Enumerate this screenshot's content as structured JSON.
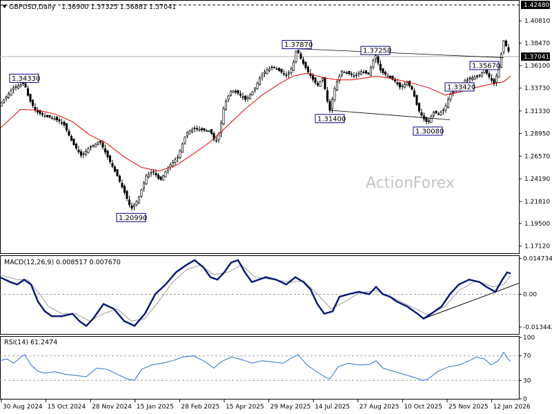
{
  "chart_data": {
    "type": "candlestick",
    "symbol": "GBPUSD,Daily",
    "ohlc_text": "1.36900 1.37325 1.36881 1.37041",
    "last_price": "1.37041",
    "watermark": "ActionForex",
    "price_axis": {
      "range": [
        1.1637,
        1.4292
      ],
      "ticks": [
        "1.40810",
        "1.38470",
        "1.36100",
        "1.33730",
        "1.31330",
        "1.28950",
        "1.26570",
        "1.24190",
        "1.21810",
        "1.19500",
        "1.17120"
      ],
      "top_label": "1.42480"
    },
    "x_axis": {
      "ticks": [
        "30 Aug 2024",
        "15 Oct 2024",
        "28 Nov 2024",
        "15 Jan 2025",
        "28 Feb 2025",
        "15 Apr 2025",
        "29 May 2025",
        "14 Jul 2025",
        "27 Aug 2025",
        "10 Oct 2025",
        "25 Nov 2025",
        "12 Jan 2026"
      ]
    },
    "price_path": [
      [
        0,
        1.32
      ],
      [
        20,
        1.338
      ],
      [
        28,
        1.34
      ],
      [
        35,
        1.3433
      ],
      [
        42,
        1.326
      ],
      [
        52,
        1.313
      ],
      [
        65,
        1.308
      ],
      [
        80,
        1.305
      ],
      [
        92,
        1.3
      ],
      [
        105,
        1.28
      ],
      [
        118,
        1.266
      ],
      [
        130,
        1.275
      ],
      [
        145,
        1.281
      ],
      [
        158,
        1.262
      ],
      [
        170,
        1.245
      ],
      [
        182,
        1.225
      ],
      [
        190,
        1.2099
      ],
      [
        200,
        1.22
      ],
      [
        212,
        1.245
      ],
      [
        222,
        1.25
      ],
      [
        232,
        1.24
      ],
      [
        245,
        1.255
      ],
      [
        258,
        1.265
      ],
      [
        270,
        1.29
      ],
      [
        282,
        1.295
      ],
      [
        295,
        1.293
      ],
      [
        305,
        1.292
      ],
      [
        312,
        1.28
      ],
      [
        318,
        1.29
      ],
      [
        325,
        1.32
      ],
      [
        335,
        1.335
      ],
      [
        345,
        1.332
      ],
      [
        356,
        1.325
      ],
      [
        368,
        1.335
      ],
      [
        378,
        1.35
      ],
      [
        386,
        1.356
      ],
      [
        396,
        1.36
      ],
      [
        406,
        1.355
      ],
      [
        416,
        1.35
      ],
      [
        424,
        1.36
      ],
      [
        430,
        1.3787
      ],
      [
        438,
        1.365
      ],
      [
        446,
        1.355
      ],
      [
        452,
        1.348
      ],
      [
        460,
        1.34
      ],
      [
        468,
        1.348
      ],
      [
        474,
        1.325
      ],
      [
        478,
        1.314
      ],
      [
        486,
        1.34
      ],
      [
        495,
        1.355
      ],
      [
        504,
        1.353
      ],
      [
        514,
        1.35
      ],
      [
        524,
        1.355
      ],
      [
        534,
        1.352
      ],
      [
        544,
        1.3725
      ],
      [
        552,
        1.355
      ],
      [
        562,
        1.35
      ],
      [
        572,
        1.345
      ],
      [
        580,
        1.338
      ],
      [
        590,
        1.343
      ],
      [
        598,
        1.335
      ],
      [
        606,
        1.315
      ],
      [
        614,
        1.305
      ],
      [
        620,
        1.3008
      ],
      [
        628,
        1.312
      ],
      [
        636,
        1.31
      ],
      [
        644,
        1.315
      ],
      [
        652,
        1.33
      ],
      [
        660,
        1.336
      ],
      [
        666,
        1.3342
      ],
      [
        674,
        1.345
      ],
      [
        684,
        1.348
      ],
      [
        694,
        1.35
      ],
      [
        702,
        1.3567
      ],
      [
        710,
        1.348
      ],
      [
        716,
        1.342
      ],
      [
        722,
        1.356
      ],
      [
        730,
        1.387
      ],
      [
        736,
        1.378
      ],
      [
        740,
        1.3704
      ]
    ],
    "moving_average_path": [
      [
        0,
        1.295
      ],
      [
        30,
        1.315
      ],
      [
        55,
        1.314
      ],
      [
        80,
        1.31
      ],
      [
        105,
        1.302
      ],
      [
        130,
        1.288
      ],
      [
        155,
        1.279
      ],
      [
        180,
        1.265
      ],
      [
        205,
        1.254
      ],
      [
        230,
        1.25
      ],
      [
        255,
        1.256
      ],
      [
        280,
        1.268
      ],
      [
        305,
        1.281
      ],
      [
        330,
        1.298
      ],
      [
        355,
        1.315
      ],
      [
        380,
        1.33
      ],
      [
        405,
        1.342
      ],
      [
        425,
        1.35
      ],
      [
        445,
        1.353
      ],
      [
        470,
        1.348
      ],
      [
        490,
        1.346
      ],
      [
        510,
        1.346
      ],
      [
        530,
        1.348
      ],
      [
        545,
        1.35
      ],
      [
        570,
        1.347
      ],
      [
        595,
        1.343
      ],
      [
        620,
        1.338
      ],
      [
        645,
        1.33
      ],
      [
        665,
        1.333
      ],
      [
        690,
        1.338
      ],
      [
        715,
        1.342
      ],
      [
        730,
        1.344
      ],
      [
        740,
        1.35
      ]
    ],
    "annotations": [
      {
        "text": "1.34330",
        "x": 35,
        "price": 1.3433
      },
      {
        "text": "1.20990",
        "x": 190,
        "price": 1.2099
      },
      {
        "text": "1.37870",
        "x": 430,
        "price": 1.3787
      },
      {
        "text": "1.37250",
        "x": 544,
        "price": 1.3725
      },
      {
        "text": "1.31400",
        "x": 478,
        "price": 1.314
      },
      {
        "text": "1.30080",
        "x": 620,
        "price": 1.3008
      },
      {
        "text": "1.35670",
        "x": 702,
        "price": 1.3567
      },
      {
        "text": "1.33420",
        "x": 666,
        "price": 1.3342
      }
    ],
    "trendlines": [
      {
        "from": [
          430,
          1.3787
        ],
        "to": [
          730,
          1.3693
        ]
      },
      {
        "from": [
          478,
          1.314
        ],
        "to": [
          652,
          1.304
        ]
      }
    ],
    "macd": {
      "label": "MACD(12,26,9) 0.008517 0.007670",
      "range": [
        -0.0163,
        0.0157
      ],
      "ticks": [
        "0.014734",
        "0.00",
        "-0.013442"
      ],
      "main_path": [
        [
          0,
          0.007
        ],
        [
          15,
          0.005
        ],
        [
          25,
          0.004
        ],
        [
          35,
          0.006
        ],
        [
          45,
          0.004
        ],
        [
          55,
          -0.003
        ],
        [
          65,
          -0.007
        ],
        [
          75,
          -0.009
        ],
        [
          90,
          -0.009
        ],
        [
          105,
          -0.008
        ],
        [
          115,
          -0.011
        ],
        [
          125,
          -0.013
        ],
        [
          135,
          -0.01
        ],
        [
          150,
          -0.004
        ],
        [
          165,
          -0.006
        ],
        [
          180,
          -0.011
        ],
        [
          195,
          -0.013
        ],
        [
          210,
          -0.008
        ],
        [
          225,
          0.0
        ],
        [
          240,
          0.004
        ],
        [
          255,
          0.009
        ],
        [
          270,
          0.012
        ],
        [
          282,
          0.014
        ],
        [
          295,
          0.011
        ],
        [
          305,
          0.007
        ],
        [
          315,
          0.006
        ],
        [
          325,
          0.009
        ],
        [
          335,
          0.013
        ],
        [
          345,
          0.014
        ],
        [
          355,
          0.009
        ],
        [
          365,
          0.005
        ],
        [
          375,
          0.006
        ],
        [
          385,
          0.007
        ],
        [
          400,
          0.006
        ],
        [
          415,
          0.004
        ],
        [
          428,
          0.007
        ],
        [
          440,
          0.005
        ],
        [
          450,
          0.002
        ],
        [
          460,
          -0.004
        ],
        [
          470,
          -0.008
        ],
        [
          482,
          -0.007
        ],
        [
          492,
          -0.001
        ],
        [
          505,
          0.0
        ],
        [
          520,
          0.001
        ],
        [
          535,
          0.0
        ],
        [
          545,
          0.003
        ],
        [
          555,
          0.0
        ],
        [
          565,
          -0.001
        ],
        [
          575,
          -0.003
        ],
        [
          590,
          -0.005
        ],
        [
          605,
          -0.008
        ],
        [
          614,
          -0.01
        ],
        [
          625,
          -0.008
        ],
        [
          640,
          -0.005
        ],
        [
          652,
          0.0
        ],
        [
          665,
          0.004
        ],
        [
          680,
          0.006
        ],
        [
          695,
          0.005
        ],
        [
          705,
          0.003
        ],
        [
          718,
          0.001
        ],
        [
          728,
          0.006
        ],
        [
          735,
          0.009
        ],
        [
          740,
          0.0085
        ]
      ],
      "signal_path": [
        [
          0,
          0.008
        ],
        [
          25,
          0.006
        ],
        [
          40,
          0.006
        ],
        [
          55,
          0.001
        ],
        [
          70,
          -0.005
        ],
        [
          90,
          -0.008
        ],
        [
          110,
          -0.008
        ],
        [
          130,
          -0.011
        ],
        [
          150,
          -0.008
        ],
        [
          170,
          -0.006
        ],
        [
          190,
          -0.011
        ],
        [
          210,
          -0.01
        ],
        [
          230,
          -0.003
        ],
        [
          250,
          0.005
        ],
        [
          270,
          0.01
        ],
        [
          290,
          0.012
        ],
        [
          310,
          0.008
        ],
        [
          330,
          0.009
        ],
        [
          350,
          0.012
        ],
        [
          370,
          0.007
        ],
        [
          395,
          0.006
        ],
        [
          420,
          0.005
        ],
        [
          440,
          0.0055
        ],
        [
          460,
          0.0
        ],
        [
          480,
          -0.006
        ],
        [
          500,
          -0.003
        ],
        [
          520,
          0.0005
        ],
        [
          545,
          0.0015
        ],
        [
          570,
          -0.0015
        ],
        [
          595,
          -0.005
        ],
        [
          620,
          -0.0085
        ],
        [
          645,
          -0.005
        ],
        [
          665,
          0.0015
        ],
        [
          690,
          0.0055
        ],
        [
          715,
          0.003
        ],
        [
          730,
          0.004
        ],
        [
          740,
          0.0077
        ]
      ],
      "trendline": {
        "from": [
          614,
          -0.01
        ],
        "to": [
          752,
          0.0045
        ]
      }
    },
    "rsi": {
      "label": "RSI(14) 61.2474",
      "range": [
        0,
        100
      ],
      "ticks": [
        "100",
        "70",
        "30",
        "0"
      ],
      "path": [
        [
          0,
          62
        ],
        [
          10,
          65
        ],
        [
          20,
          58
        ],
        [
          30,
          68
        ],
        [
          36,
          72
        ],
        [
          45,
          55
        ],
        [
          55,
          45
        ],
        [
          65,
          42
        ],
        [
          80,
          44
        ],
        [
          95,
          40
        ],
        [
          110,
          38
        ],
        [
          125,
          36
        ],
        [
          140,
          50
        ],
        [
          155,
          48
        ],
        [
          170,
          40
        ],
        [
          185,
          32
        ],
        [
          195,
          30
        ],
        [
          205,
          48
        ],
        [
          220,
          55
        ],
        [
          235,
          58
        ],
        [
          250,
          62
        ],
        [
          265,
          68
        ],
        [
          280,
          70
        ],
        [
          295,
          62
        ],
        [
          310,
          50
        ],
        [
          320,
          60
        ],
        [
          335,
          68
        ],
        [
          350,
          64
        ],
        [
          365,
          58
        ],
        [
          380,
          62
        ],
        [
          395,
          60
        ],
        [
          410,
          58
        ],
        [
          425,
          68
        ],
        [
          432,
          72
        ],
        [
          445,
          55
        ],
        [
          458,
          45
        ],
        [
          472,
          35
        ],
        [
          478,
          32
        ],
        [
          490,
          52
        ],
        [
          505,
          58
        ],
        [
          520,
          55
        ],
        [
          535,
          56
        ],
        [
          545,
          62
        ],
        [
          555,
          50
        ],
        [
          570,
          45
        ],
        [
          585,
          40
        ],
        [
          600,
          35
        ],
        [
          612,
          30
        ],
        [
          620,
          32
        ],
        [
          635,
          45
        ],
        [
          650,
          52
        ],
        [
          665,
          55
        ],
        [
          680,
          62
        ],
        [
          690,
          68
        ],
        [
          702,
          65
        ],
        [
          712,
          55
        ],
        [
          722,
          62
        ],
        [
          730,
          76
        ],
        [
          736,
          65
        ],
        [
          740,
          61
        ]
      ]
    }
  }
}
